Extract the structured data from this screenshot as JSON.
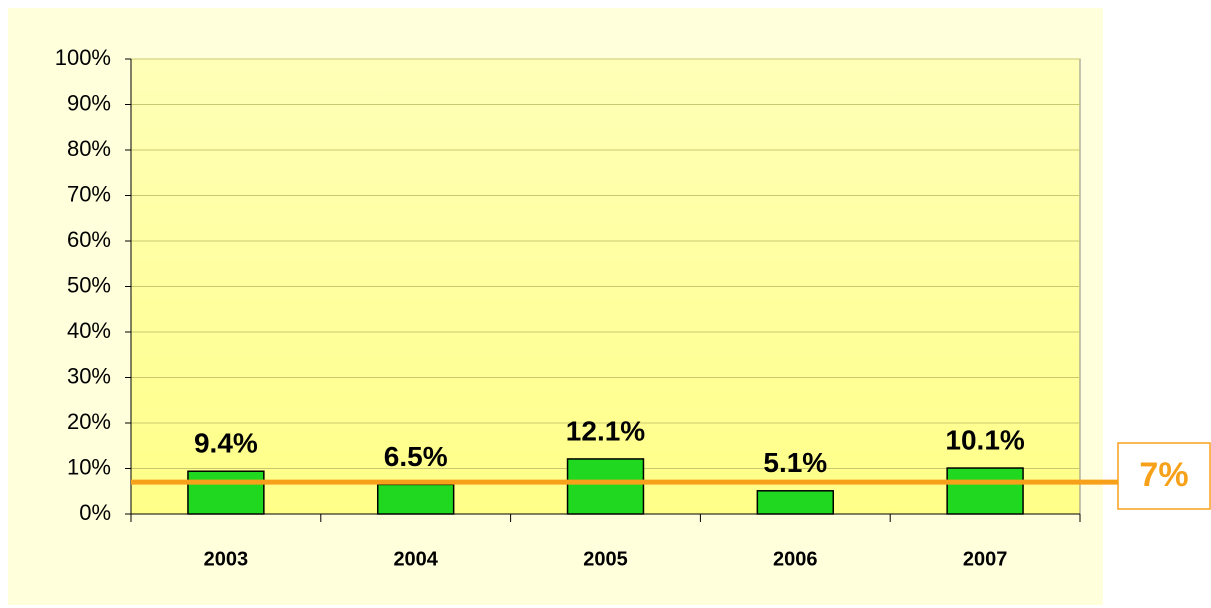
{
  "chart_data": {
    "type": "bar",
    "categories": [
      "2003",
      "2004",
      "2005",
      "2006",
      "2007"
    ],
    "values": [
      9.4,
      6.5,
      12.1,
      5.1,
      10.1
    ],
    "value_labels": [
      "9.4%",
      "6.5%",
      "12.1%",
      "5.1%",
      "10.1%"
    ],
    "color": "#1fd81f",
    "ylim": [
      0,
      100
    ],
    "yticks": [
      {
        "value": 0,
        "label": "0%"
      },
      {
        "value": 10,
        "label": "10%"
      },
      {
        "value": 20,
        "label": "20%"
      },
      {
        "value": 30,
        "label": "30%"
      },
      {
        "value": 40,
        "label": "40%"
      },
      {
        "value": 50,
        "label": "50%"
      },
      {
        "value": 60,
        "label": "60%"
      },
      {
        "value": 70,
        "label": "70%"
      },
      {
        "value": 80,
        "label": "80%"
      },
      {
        "value": 90,
        "label": "90%"
      },
      {
        "value": 100,
        "label": "100%"
      }
    ],
    "grid": true,
    "reference_line": {
      "value": 7,
      "label": "7%",
      "color": "#f7a11a"
    }
  }
}
